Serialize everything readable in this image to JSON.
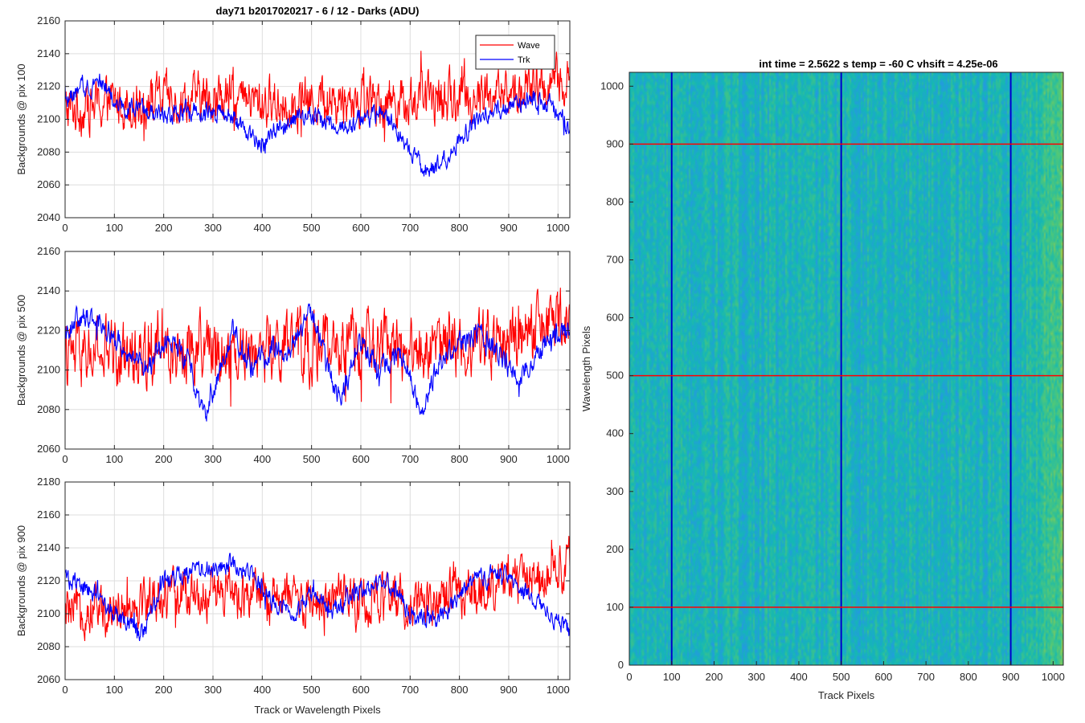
{
  "chart_data": [
    {
      "type": "line",
      "title": "day71 b2017020217 - 6 / 12 - Darks (ADU)",
      "xlabel": "",
      "ylabel": "Backgrounds @ pix 100",
      "xlim": [
        0,
        1024
      ],
      "ylim": [
        2040,
        2160
      ],
      "xticks": [
        0,
        100,
        200,
        300,
        400,
        500,
        600,
        700,
        800,
        900,
        1000
      ],
      "yticks": [
        2040,
        2060,
        2080,
        2100,
        2120,
        2140,
        2160
      ],
      "grid": true,
      "legend": {
        "placement": "top-right",
        "entries": [
          "Wave",
          "Trk"
        ]
      },
      "series": [
        {
          "name": "Wave",
          "color": "#ff0000",
          "mean": 2110,
          "noise": 13,
          "trend": 6,
          "x": [
            0,
            100,
            200,
            300,
            400,
            500,
            600,
            700,
            800,
            900,
            1024
          ],
          "values": [
            2105,
            2110,
            2112,
            2113,
            2110,
            2111,
            2112,
            2112,
            2113,
            2115,
            2125
          ]
        },
        {
          "name": "Trk",
          "color": "#0000ff",
          "mean": 2105,
          "noise": 5,
          "x": [
            0,
            20,
            70,
            100,
            150,
            200,
            250,
            300,
            340,
            400,
            450,
            500,
            530,
            560,
            600,
            650,
            700,
            730,
            760,
            800,
            850,
            900,
            950,
            980,
            1024
          ],
          "values": [
            2112,
            2115,
            2125,
            2110,
            2105,
            2103,
            2105,
            2106,
            2100,
            2085,
            2098,
            2103,
            2098,
            2095,
            2100,
            2103,
            2080,
            2068,
            2072,
            2088,
            2103,
            2108,
            2113,
            2110,
            2090
          ]
        }
      ]
    },
    {
      "type": "line",
      "title": "",
      "xlabel": "",
      "ylabel": "Backgrounds @ pix 500",
      "xlim": [
        0,
        1024
      ],
      "ylim": [
        2060,
        2160
      ],
      "xticks": [
        0,
        100,
        200,
        300,
        400,
        500,
        600,
        700,
        800,
        900,
        1000
      ],
      "yticks": [
        2060,
        2080,
        2100,
        2120,
        2140,
        2160
      ],
      "grid": true,
      "series": [
        {
          "name": "Wave",
          "color": "#ff0000",
          "mean": 2110,
          "noise": 14,
          "trend": 8,
          "x": [
            0,
            100,
            200,
            300,
            400,
            500,
            600,
            700,
            800,
            900,
            1024
          ],
          "values": [
            2106,
            2108,
            2110,
            2112,
            2110,
            2112,
            2112,
            2110,
            2113,
            2115,
            2124
          ]
        },
        {
          "name": "Trk",
          "color": "#0000ff",
          "mean": 2110,
          "noise": 5,
          "x": [
            0,
            40,
            80,
            120,
            170,
            210,
            250,
            285,
            340,
            380,
            420,
            450,
            500,
            530,
            560,
            600,
            640,
            680,
            720,
            760,
            800,
            840,
            880,
            920,
            980,
            1024
          ],
          "values": [
            2120,
            2128,
            2124,
            2110,
            2100,
            2118,
            2103,
            2078,
            2120,
            2100,
            2112,
            2108,
            2130,
            2103,
            2085,
            2115,
            2100,
            2110,
            2080,
            2105,
            2113,
            2118,
            2108,
            2095,
            2115,
            2120
          ]
        }
      ]
    },
    {
      "type": "line",
      "title": "",
      "xlabel": "Track or Wavelength Pixels",
      "ylabel": "Backgrounds @ pix 900",
      "xlim": [
        0,
        1024
      ],
      "ylim": [
        2060,
        2180
      ],
      "xticks": [
        0,
        100,
        200,
        300,
        400,
        500,
        600,
        700,
        800,
        900,
        1000
      ],
      "yticks": [
        2060,
        2080,
        2100,
        2120,
        2140,
        2160,
        2180
      ],
      "grid": true,
      "series": [
        {
          "name": "Wave",
          "color": "#ff0000",
          "mean": 2108,
          "noise": 13,
          "trend": 10,
          "x": [
            0,
            100,
            200,
            300,
            400,
            500,
            600,
            700,
            800,
            900,
            1024
          ],
          "values": [
            2100,
            2105,
            2110,
            2112,
            2110,
            2108,
            2108,
            2108,
            2112,
            2118,
            2130
          ]
        },
        {
          "name": "Trk",
          "color": "#0000ff",
          "mean": 2115,
          "noise": 5,
          "x": [
            0,
            30,
            60,
            100,
            160,
            200,
            250,
            300,
            340,
            380,
            420,
            460,
            500,
            540,
            580,
            620,
            660,
            700,
            740,
            780,
            820,
            880,
            940,
            980,
            1024
          ],
          "values": [
            2122,
            2118,
            2112,
            2100,
            2088,
            2120,
            2125,
            2128,
            2130,
            2125,
            2108,
            2100,
            2112,
            2100,
            2110,
            2115,
            2118,
            2100,
            2095,
            2103,
            2118,
            2125,
            2113,
            2100,
            2090
          ]
        }
      ]
    },
    {
      "type": "heatmap",
      "title": "int time = 2.5622 s    temp = -60 C    vhsift = 4.25e-06",
      "xlabel": "Track Pixels",
      "ylabel": "Wavelength Pixels",
      "xlim": [
        0,
        1024
      ],
      "ylim": [
        0,
        1024
      ],
      "xticks": [
        0,
        100,
        200,
        300,
        400,
        500,
        600,
        700,
        800,
        900,
        1000
      ],
      "yticks": [
        0,
        100,
        200,
        300,
        400,
        500,
        600,
        700,
        800,
        900,
        1000
      ],
      "colormap": "parula",
      "vertical_lines": {
        "color": "#0000cc",
        "x": [
          100,
          500,
          900
        ]
      },
      "horizontal_lines": {
        "color": "#ff0000",
        "y": [
          100,
          500,
          900
        ]
      }
    }
  ]
}
